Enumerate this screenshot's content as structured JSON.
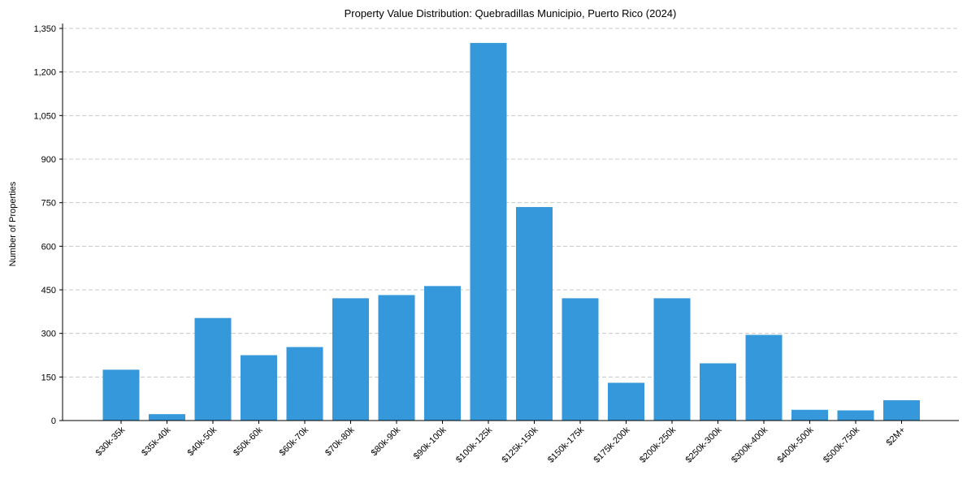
{
  "chart_data": {
    "type": "bar",
    "title": "Property Value Distribution: Quebradillas Municipio, Puerto Rico (2024)",
    "xlabel": "",
    "ylabel": "Number of Properties",
    "categories": [
      "$30k-35k",
      "$35k-40k",
      "$40k-50k",
      "$50k-60k",
      "$60k-70k",
      "$70k-80k",
      "$80k-90k",
      "$90k-100k",
      "$100k-125k",
      "$125k-150k",
      "$150k-175k",
      "$175k-200k",
      "$200k-250k",
      "$250k-300k",
      "$300k-400k",
      "$400k-500k",
      "$500k-750k",
      "$2M+"
    ],
    "values": [
      175,
      22,
      353,
      225,
      253,
      421,
      432,
      463,
      1300,
      735,
      421,
      130,
      421,
      197,
      295,
      37,
      35,
      70
    ],
    "ylim": [
      0,
      1350
    ],
    "yticks": [
      0,
      150,
      300,
      450,
      600,
      750,
      900,
      1050,
      1200,
      1350
    ],
    "ytick_labels": [
      "0",
      "150",
      "300",
      "450",
      "600",
      "750",
      "900",
      "1,050",
      "1,200",
      "1,350"
    ],
    "grid": "y-dashed",
    "bar_color": "#3498db"
  }
}
